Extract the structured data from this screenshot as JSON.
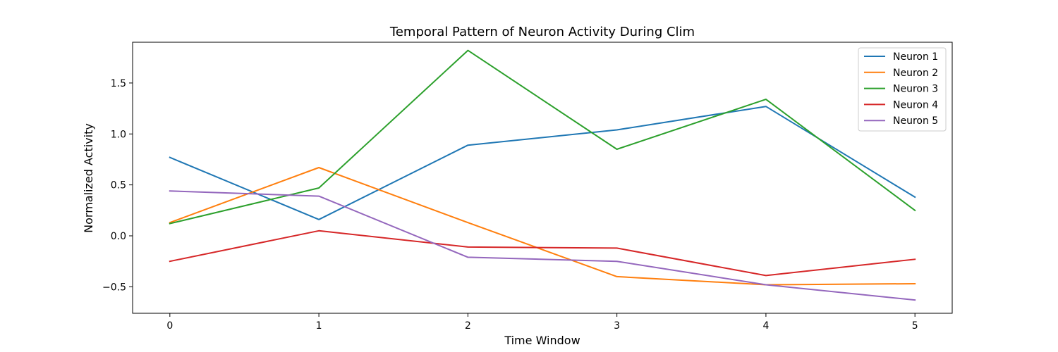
{
  "chart_data": {
    "type": "line",
    "title": "Temporal Pattern of Neuron Activity During Clim",
    "xlabel": "Time Window",
    "ylabel": "Normalized Activity",
    "x": [
      0,
      1,
      2,
      3,
      4,
      5
    ],
    "x_ticks": [
      "0",
      "1",
      "2",
      "3",
      "4",
      "5"
    ],
    "xlim": [
      -0.25,
      5.25
    ],
    "y_ticks": [
      "−0.5",
      "0.0",
      "0.5",
      "1.0",
      "1.5"
    ],
    "y_tick_values": [
      -0.5,
      0.0,
      0.5,
      1.0,
      1.5
    ],
    "ylim": [
      -0.76,
      1.9
    ],
    "grid": false,
    "legend_position": "top-right",
    "series": [
      {
        "name": "Neuron 1",
        "color": "#1f77b4",
        "values": [
          0.77,
          0.16,
          0.89,
          1.04,
          1.27,
          0.38
        ]
      },
      {
        "name": "Neuron 2",
        "color": "#ff7f0e",
        "values": [
          0.13,
          0.67,
          0.13,
          -0.4,
          -0.48,
          -0.47
        ]
      },
      {
        "name": "Neuron 3",
        "color": "#2ca02c",
        "values": [
          0.12,
          0.47,
          1.82,
          0.85,
          1.34,
          0.25
        ]
      },
      {
        "name": "Neuron 4",
        "color": "#d62728",
        "values": [
          -0.25,
          0.05,
          -0.11,
          -0.12,
          -0.39,
          -0.23
        ]
      },
      {
        "name": "Neuron 5",
        "color": "#9467bd",
        "values": [
          0.44,
          0.39,
          -0.21,
          -0.25,
          -0.48,
          -0.63
        ]
      }
    ]
  }
}
